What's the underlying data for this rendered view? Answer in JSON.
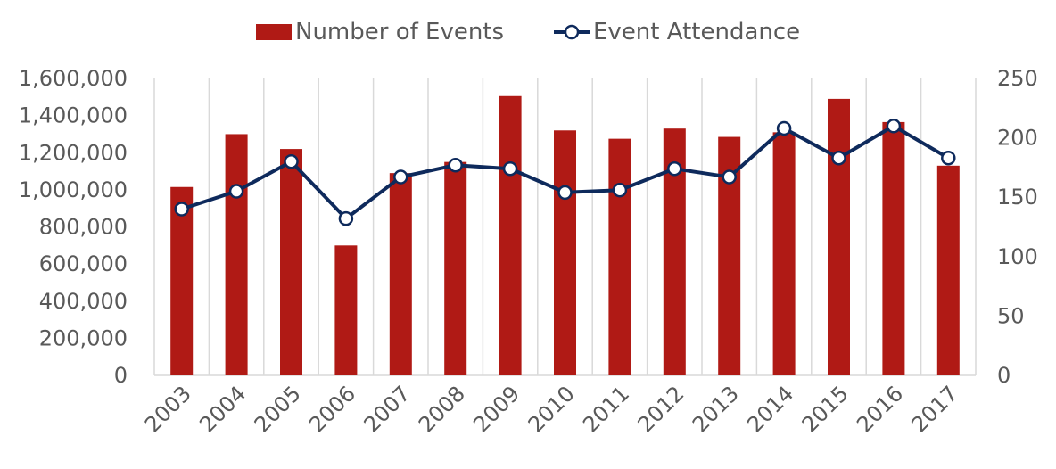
{
  "chart_data": {
    "type": "bar",
    "categories": [
      "2003",
      "2004",
      "2005",
      "2006",
      "2007",
      "2008",
      "2009",
      "2010",
      "2011",
      "2012",
      "2013",
      "2014",
      "2015",
      "2016",
      "2017"
    ],
    "series": [
      {
        "name": "Number of Events",
        "type": "bar",
        "axis": "left",
        "color": "#b01a15",
        "values": [
          1015000,
          1300000,
          1220000,
          700000,
          1090000,
          1150000,
          1505000,
          1320000,
          1275000,
          1330000,
          1285000,
          1310000,
          1490000,
          1365000,
          1130000
        ]
      },
      {
        "name": "Event Attendance",
        "type": "line",
        "axis": "right",
        "color": "#0e2a5c",
        "values": [
          140,
          155,
          180,
          132,
          167,
          177,
          174,
          154,
          156,
          174,
          167,
          208,
          183,
          210,
          183
        ]
      }
    ],
    "y_left": {
      "min": 0,
      "max": 1600000,
      "ticks": [
        "0",
        "200,000",
        "400,000",
        "600,000",
        "800,000",
        "1,000,000",
        "1,200,000",
        "1,400,000",
        "1,600,000"
      ]
    },
    "y_right": {
      "min": 0,
      "max": 250,
      "ticks": [
        "0",
        "50",
        "100",
        "150",
        "200",
        "250"
      ]
    },
    "legend_position": "top-center",
    "grid": "vertical-category-lines"
  }
}
